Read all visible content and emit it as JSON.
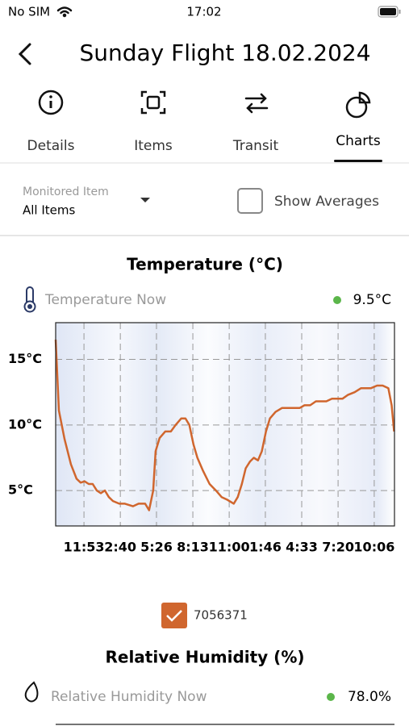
{
  "status_bar": {
    "carrier": "No SIM",
    "time": "17:02"
  },
  "header": {
    "title": "Sunday Flight 18.02.2024"
  },
  "tabs": [
    {
      "label": "Details"
    },
    {
      "label": "Items"
    },
    {
      "label": "Transit"
    },
    {
      "label": "Charts"
    }
  ],
  "filter": {
    "label": "Monitored Item",
    "value": "All Items",
    "toggle": "Show Averages"
  },
  "temperature_panel": {
    "now_label": "Temperature Now",
    "now_value": "9.5°C"
  },
  "chart_data": {
    "type": "line",
    "title": "Temperature (°C)",
    "x": [
      0,
      15,
      41,
      70,
      96,
      115,
      133,
      152,
      170,
      189,
      207,
      226,
      244,
      263,
      292,
      318,
      355,
      381,
      411,
      429,
      448,
      459,
      477,
      503,
      529,
      551,
      577,
      596,
      614,
      633,
      651,
      677,
      707,
      736,
      762,
      788,
      818,
      836,
      855,
      873,
      892,
      910,
      929,
      947,
      966,
      984,
      1010,
      1040,
      1077,
      1121,
      1143,
      1169,
      1195,
      1243,
      1269,
      1317,
      1343,
      1373,
      1402,
      1447,
      1476,
      1502,
      1528,
      1543,
      1554
    ],
    "series": [
      {
        "name": "7056371",
        "color": "#d0662e",
        "values": [
          16.5,
          11.1,
          8.9,
          7.0,
          5.9,
          5.6,
          5.7,
          5.5,
          5.5,
          5.0,
          4.8,
          5.0,
          4.5,
          4.2,
          4.0,
          4.0,
          3.8,
          4.0,
          4.0,
          3.5,
          5.0,
          8.0,
          9.0,
          9.5,
          9.5,
          10.0,
          10.5,
          10.5,
          10.0,
          8.5,
          7.5,
          6.5,
          5.5,
          5.0,
          4.5,
          4.3,
          4.0,
          4.5,
          5.5,
          6.7,
          7.2,
          7.5,
          7.3,
          8.0,
          9.5,
          10.5,
          11.0,
          11.3,
          11.3,
          11.3,
          11.5,
          11.5,
          11.8,
          11.8,
          12.0,
          12.0,
          12.3,
          12.5,
          12.8,
          12.8,
          13.0,
          13.0,
          12.8,
          11.5,
          9.5
        ]
      }
    ],
    "xlim": [
      0,
      1556
    ],
    "xticks": [
      {
        "value": 130,
        "label": "11:53"
      },
      {
        "value": 297,
        "label": "2:40"
      },
      {
        "value": 463,
        "label": "5:26"
      },
      {
        "value": 630,
        "label": "8:13"
      },
      {
        "value": 797,
        "label": "11:00"
      },
      {
        "value": 963,
        "label": "1:46"
      },
      {
        "value": 1130,
        "label": "4:33"
      },
      {
        "value": 1297,
        "label": "7:20"
      },
      {
        "value": 1463,
        "label": "10:06"
      }
    ],
    "ylim": [
      2.3,
      17.8
    ],
    "yticks": [
      {
        "value": 5,
        "label": "5°C"
      },
      {
        "value": 10,
        "label": "10°C"
      },
      {
        "value": 15,
        "label": "15°C"
      }
    ],
    "grid": true
  },
  "humidity_panel": {
    "title": "Relative Humidity (%)",
    "now_label": "Relative Humidity Now",
    "now_value": "78.0%"
  }
}
